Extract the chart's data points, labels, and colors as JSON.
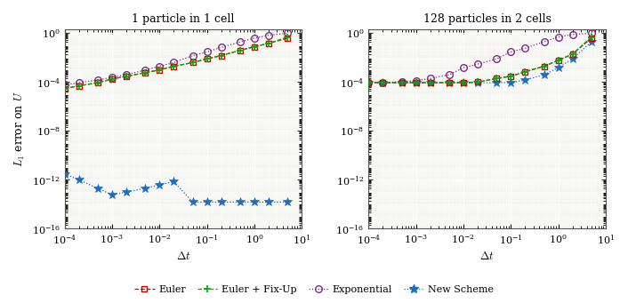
{
  "title_left": "1 particle in 1 cell",
  "title_right": "128 particles in 2 cells",
  "xlabel": "$\\Delta t$",
  "ylabel": "$L_1$ error on $U$",
  "xlim": [
    0.0001,
    10
  ],
  "ylim": [
    1e-16,
    2.0
  ],
  "left": {
    "euler_x": [
      0.0001,
      0.0002,
      0.0005,
      0.001,
      0.002,
      0.005,
      0.01,
      0.02,
      0.05,
      0.1,
      0.2,
      0.5,
      1.0,
      2.0,
      5.0
    ],
    "euler_y": [
      3e-05,
      5e-05,
      9e-05,
      0.00018,
      0.0003,
      0.0006,
      0.001,
      0.002,
      0.004,
      0.008,
      0.015,
      0.04,
      0.08,
      0.15,
      0.4
    ],
    "fixup_x": [
      0.0001,
      0.0002,
      0.0005,
      0.001,
      0.002,
      0.005,
      0.01,
      0.02,
      0.05,
      0.1,
      0.2,
      0.5,
      1.0,
      2.0,
      5.0
    ],
    "fixup_y": [
      3e-05,
      5e-05,
      9e-05,
      0.00018,
      0.0003,
      0.0006,
      0.001,
      0.002,
      0.004,
      0.008,
      0.015,
      0.04,
      0.08,
      0.15,
      0.5
    ],
    "expo_x": [
      0.0001,
      0.0002,
      0.0005,
      0.001,
      0.002,
      0.005,
      0.01,
      0.02,
      0.05,
      0.1,
      0.2,
      0.5,
      1.0,
      2.0,
      5.0
    ],
    "expo_y": [
      6e-05,
      9e-05,
      0.00015,
      0.00025,
      0.0004,
      0.001,
      0.002,
      0.004,
      0.015,
      0.03,
      0.07,
      0.2,
      0.4,
      0.7,
      1.0
    ],
    "new_x": [
      0.0001,
      0.0002,
      0.0005,
      0.001,
      0.002,
      0.005,
      0.01,
      0.02,
      0.05,
      0.1,
      0.2,
      0.5,
      1.0,
      2.0,
      5.0
    ],
    "new_y": [
      3e-12,
      1e-12,
      2e-13,
      6e-14,
      1e-13,
      2e-13,
      4e-13,
      7e-13,
      1.5e-14,
      1.5e-14,
      1.5e-14,
      1.5e-14,
      1.5e-14,
      1.5e-14,
      1.5e-14
    ]
  },
  "right": {
    "euler_x": [
      0.0001,
      0.0002,
      0.0005,
      0.001,
      0.002,
      0.005,
      0.01,
      0.02,
      0.05,
      0.1,
      0.2,
      0.5,
      1.0,
      2.0,
      5.0
    ],
    "euler_y": [
      9e-05,
      9e-05,
      9e-05,
      9e-05,
      9e-05,
      9e-05,
      9e-05,
      0.0001,
      0.0002,
      0.0003,
      0.0007,
      0.002,
      0.006,
      0.02,
      0.4
    ],
    "fixup_x": [
      0.0001,
      0.0002,
      0.0005,
      0.001,
      0.002,
      0.005,
      0.01,
      0.02,
      0.05,
      0.1,
      0.2,
      0.5,
      1.0,
      2.0,
      5.0
    ],
    "fixup_y": [
      9e-05,
      9e-05,
      9e-05,
      9e-05,
      9e-05,
      9e-05,
      9e-05,
      0.0001,
      0.0002,
      0.0003,
      0.0007,
      0.002,
      0.006,
      0.02,
      0.5
    ],
    "expo_x": [
      0.0001,
      0.0002,
      0.0005,
      0.001,
      0.002,
      0.005,
      0.01,
      0.02,
      0.05,
      0.1,
      0.2,
      0.5,
      1.0,
      2.0,
      5.0
    ],
    "expo_y": [
      9e-05,
      9e-05,
      0.00011,
      0.00013,
      0.0002,
      0.0004,
      0.0015,
      0.003,
      0.008,
      0.03,
      0.06,
      0.2,
      0.5,
      0.8,
      1.0
    ],
    "new_x": [
      0.0001,
      0.0002,
      0.0005,
      0.001,
      0.002,
      0.005,
      0.01,
      0.02,
      0.05,
      0.1,
      0.2,
      0.5,
      1.0,
      2.0,
      5.0
    ],
    "new_y": [
      9e-05,
      9e-05,
      9e-05,
      9e-05,
      9e-05,
      9e-05,
      9e-05,
      9e-05,
      9e-05,
      9e-05,
      0.00015,
      0.0004,
      0.0015,
      0.008,
      0.2
    ]
  },
  "euler_color": "#cc0000",
  "fixup_color": "#00aa00",
  "expo_color": "#7b2d8b",
  "new_color": "#1f6dbf",
  "bg_color": "#f5f5f0",
  "grid_color": "#ffffff"
}
